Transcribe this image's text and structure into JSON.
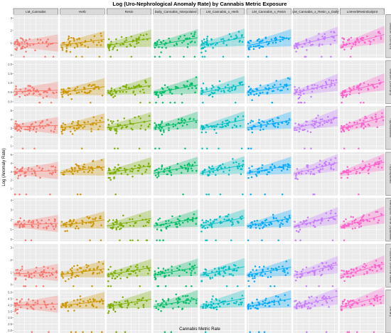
{
  "chart_data": {
    "type": "scatter",
    "title": "Log (Uro-Nephrological Anomaly Rate) by Cannabis Metric Exposure",
    "xlabel": "Cannabis Metric Rate",
    "ylabel": "Log (Anomaly Rate)",
    "columns": [
      {
        "label": "LM_Cannabis",
        "color": "#F8766D",
        "xlim": [
          0,
          0.1
        ],
        "ticks": [
          "0.000",
          "0.025",
          "0.050",
          "0.075",
          "0.100"
        ],
        "slope": 0.05
      },
      {
        "label": "Herb",
        "color": "#CD9600",
        "xlim": [
          0,
          0.15
        ],
        "ticks": [
          "0.04",
          "0.08",
          "0.12"
        ],
        "slope": 0.22
      },
      {
        "label": "Resin",
        "color": "#7CAE00",
        "xlim": [
          -0.1,
          0.45
        ],
        "ticks": [
          "-0.1",
          "0.0",
          "0.1",
          "0.2",
          "0.3",
          "0.4"
        ],
        "slope": 0.28
      },
      {
        "label": "Daily_Cannabis_Interpolated",
        "color": "#00BE67",
        "xlim": [
          0,
          0.035
        ],
        "ticks": [
          "0.00",
          "0.01",
          "0.02",
          "0.03"
        ],
        "slope": 0.3
      },
      {
        "label": "LM_Cannabis_x_Herb",
        "color": "#00BFC4",
        "xlim": [
          -0.05,
          0.6
        ],
        "ticks": [
          "0.0",
          "0.2",
          "0.4"
        ],
        "slope": 0.32
      },
      {
        "label": "LM_Cannabis_x_Resin",
        "color": "#00A9FF",
        "xlim": [
          -0.05,
          1.15
        ],
        "ticks": [
          "0.0",
          "0.3",
          "0.6",
          "0.9"
        ],
        "slope": 0.3
      },
      {
        "label": "LM_Cannabis_x_Resin_x_Daily",
        "color": "#C77CFF",
        "xlim": [
          -0.005,
          0.065
        ],
        "ticks": [
          "0.00",
          "0.02",
          "0.04",
          "0.06"
        ],
        "slope": 0.42
      },
      {
        "label": "LmHerbResinDailyInt",
        "color": "#FF61CC",
        "xlim": [
          -0.1,
          1.0
        ],
        "ticks": [
          "0.0",
          "0.4",
          "0.8"
        ],
        "slope": 0.45
      }
    ],
    "rows": [
      {
        "label": "Bladder Exstrophy",
        "ylim": [
          -0.2,
          3.3
        ],
        "ticks": [
          "0",
          "1",
          "2",
          "3"
        ],
        "base": 0.9
      },
      {
        "label": "Bladder Exstrophy",
        "ylim": [
          -0.1,
          2.2
        ],
        "ticks": [
          "0.0",
          "0.5",
          "1.0",
          "1.5",
          "2.0"
        ],
        "base": 0.55
      },
      {
        "label": "Hypospadias",
        "ylim": [
          0.6,
          5.5
        ],
        "ticks": [
          "1",
          "2",
          "3",
          "4",
          "5"
        ],
        "base": 3.2
      },
      {
        "label": "Hypospadias",
        "ylim": [
          0.2,
          5.3
        ],
        "ticks": [
          "1",
          "2",
          "3",
          "4",
          "5"
        ],
        "base": 3.0
      },
      {
        "label": "Multicystic Renal Dysplasia",
        "ylim": [
          -0.2,
          4.2
        ],
        "ticks": [
          "0",
          "1",
          "2",
          "3",
          "4"
        ],
        "base": 1.5
      },
      {
        "label": "Posterior Urethral Valve",
        "ylim": [
          -0.2,
          3.3
        ],
        "ticks": [
          "0",
          "1",
          "2",
          "3"
        ],
        "base": 0.9
      },
      {
        "label": "Urinary",
        "ylim": [
          1.8,
          5.2
        ],
        "ticks": [
          "2.0",
          "2.5",
          "3.0",
          "3.5",
          "4.0",
          "4.5",
          "5.0"
        ],
        "base": 4.0
      }
    ]
  }
}
